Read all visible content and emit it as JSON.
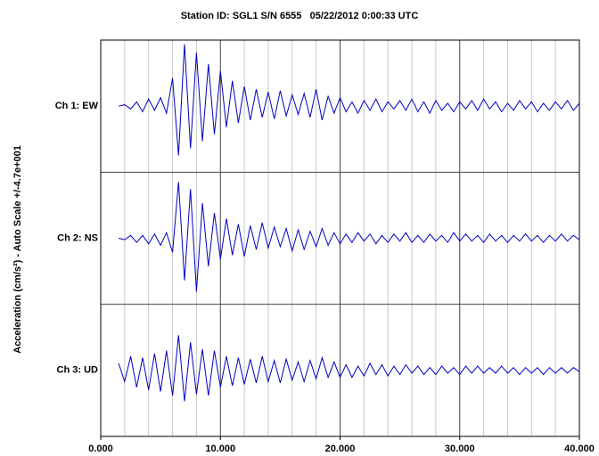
{
  "chart_data": {
    "type": "line",
    "title": "Station ID: SGL1 S/N 6555   05/22/2012 0:00:33 UTC",
    "y_label": "Acceleration (cm/s²) - Auto Scale +/-4.7e+001",
    "xlim": [
      0,
      40
    ],
    "xticks": [
      {
        "value": 0,
        "label": "0.000"
      },
      {
        "value": 10,
        "label": "10.000"
      },
      {
        "value": 20,
        "label": "20.000"
      },
      {
        "value": 30,
        "label": "30.000"
      },
      {
        "value": 40,
        "label": "40.000"
      }
    ],
    "minor_xticks": [
      2,
      4,
      6,
      8,
      12,
      14,
      16,
      18,
      22,
      24,
      26,
      28,
      32,
      34,
      36,
      38
    ],
    "ylim": [
      -47,
      47
    ],
    "grid": true,
    "x": [
      0,
      0.5,
      1,
      1.5,
      2,
      2.5,
      3,
      3.5,
      4,
      4.5,
      5,
      5.5,
      6,
      6.5,
      7,
      7.5,
      8,
      8.5,
      9,
      9.5,
      10,
      10.5,
      11,
      11.5,
      12,
      12.5,
      13,
      13.5,
      14,
      14.5,
      15,
      15.5,
      16,
      16.5,
      17,
      17.5,
      18,
      18.5,
      19,
      19.5,
      20,
      20.5,
      21,
      21.5,
      22,
      22.5,
      23,
      23.5,
      24,
      24.5,
      25,
      25.5,
      26,
      26.5,
      27,
      27.5,
      28,
      28.5,
      29,
      29.5,
      30,
      30.5,
      31,
      31.5,
      32,
      32.5,
      33,
      33.5,
      34,
      34.5,
      35,
      35.5,
      36,
      36.5,
      37,
      37.5,
      38,
      38.5,
      39,
      39.5,
      40
    ],
    "series": [
      {
        "name": "Ch 1: EW",
        "color": "#0000c0",
        "values": [
          null,
          null,
          null,
          0,
          1,
          -2,
          3,
          -4,
          5,
          -3,
          6,
          -5,
          20,
          -35,
          44,
          -30,
          38,
          -25,
          30,
          -20,
          25,
          -15,
          18,
          -12,
          14,
          -10,
          12,
          -8,
          10,
          -9,
          11,
          -7,
          8,
          -6,
          9,
          -8,
          12,
          -10,
          7,
          -5,
          6,
          -4,
          3,
          -5,
          4,
          -3,
          5,
          -4,
          3,
          -2,
          4,
          -3,
          5,
          -4,
          3,
          -5,
          4,
          -3,
          2,
          -4,
          3,
          -2,
          4,
          -3,
          5,
          -2,
          3,
          -4,
          2,
          -3,
          4,
          -2,
          3,
          -4,
          2,
          -3,
          3,
          -2,
          4,
          -3,
          2
        ]
      },
      {
        "name": "Ch 2: NS",
        "color": "#0000c0",
        "values": [
          null,
          null,
          null,
          0,
          -1,
          2,
          -3,
          2,
          -4,
          3,
          -5,
          4,
          -10,
          40,
          -30,
          35,
          -38,
          25,
          -20,
          18,
          -15,
          14,
          -12,
          10,
          -13,
          9,
          -8,
          11,
          -7,
          8,
          -6,
          7,
          -9,
          6,
          -8,
          5,
          -6,
          7,
          -5,
          4,
          -4,
          3,
          -3,
          4,
          -2,
          3,
          -4,
          2,
          -3,
          3,
          -2,
          4,
          -3,
          2,
          -3,
          3,
          -2,
          2,
          -3,
          4,
          -2,
          3,
          -2,
          2,
          -3,
          3,
          -2,
          2,
          -3,
          2,
          -2,
          3,
          -2,
          2,
          -3,
          2,
          -2,
          3,
          -2,
          2,
          -1
        ]
      },
      {
        "name": "Ch 3: UD",
        "color": "#0000c0",
        "values": [
          null,
          null,
          null,
          5,
          -8,
          10,
          -12,
          9,
          -14,
          12,
          -15,
          14,
          -18,
          25,
          -22,
          20,
          -17,
          15,
          -18,
          14,
          -12,
          10,
          -11,
          9,
          -10,
          8,
          -9,
          10,
          -8,
          7,
          -9,
          8,
          -7,
          6,
          -8,
          7,
          -6,
          9,
          -5,
          6,
          -5,
          4,
          -5,
          3,
          -4,
          5,
          -3,
          4,
          -4,
          3,
          -3,
          4,
          -2,
          3,
          -3,
          2,
          -3,
          3,
          -2,
          2,
          -3,
          3,
          -2,
          3,
          -2,
          2,
          -2,
          3,
          -2,
          2,
          -3,
          2,
          -2,
          2,
          -3,
          2,
          -2,
          2,
          -2,
          2,
          -1
        ]
      }
    ]
  }
}
